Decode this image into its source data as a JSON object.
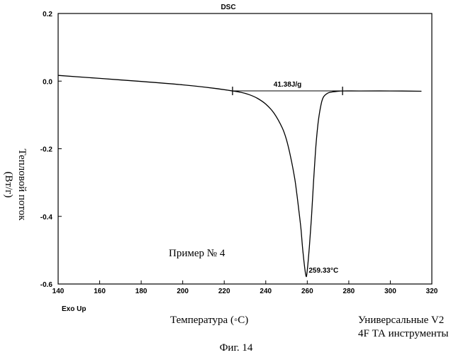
{
  "chart_data": {
    "type": "line",
    "title": "DSC",
    "xlabel": "Температура (◦С)",
    "ylabel_line1": "Тепловой поток",
    "ylabel_line2": "(Вт/г)",
    "xlim": [
      140,
      320
    ],
    "ylim": [
      -0.6,
      0.2
    ],
    "x_ticks": [
      140,
      160,
      180,
      200,
      220,
      240,
      260,
      280,
      300,
      320
    ],
    "y_ticks": [
      0.2,
      0.0,
      -0.2,
      -0.4,
      -0.6
    ],
    "y_tick_labels": [
      "0.2",
      "0.0",
      "-0.2",
      "-0.4",
      "-0.6"
    ],
    "grid": false,
    "series": [
      {
        "x": [
          140,
          160,
          180,
          200,
          215,
          224,
          228,
          232,
          236,
          240,
          244,
          248,
          250,
          252,
          254,
          255,
          256,
          257,
          258,
          259.33,
          260,
          261,
          262,
          263,
          264,
          265,
          266,
          267,
          268,
          270,
          272,
          275,
          277,
          285,
          300,
          315
        ],
        "values": [
          0.017,
          0.008,
          -0.001,
          -0.011,
          -0.021,
          -0.029,
          -0.033,
          -0.04,
          -0.051,
          -0.068,
          -0.095,
          -0.139,
          -0.174,
          -0.225,
          -0.29,
          -0.335,
          -0.385,
          -0.44,
          -0.51,
          -0.575,
          -0.56,
          -0.49,
          -0.405,
          -0.3,
          -0.205,
          -0.135,
          -0.09,
          -0.06,
          -0.045,
          -0.035,
          -0.032,
          -0.03,
          -0.029,
          -0.029,
          -0.029,
          -0.03
        ]
      }
    ],
    "baseline": {
      "x": [
        224,
        277
      ],
      "y": [
        -0.029,
        -0.029
      ]
    },
    "integration_marks_x": [
      224,
      277
    ],
    "annotations": {
      "enthalpy": "41.38J/g",
      "peak": "259.33°C",
      "peak_x": 259.33,
      "peak_y": -0.575,
      "sample": "Пример № 4",
      "exo": "Exo Up",
      "instrument_line1": "Универсальные V2",
      "instrument_line2": "4F ТА инструменты"
    },
    "caption": "Фиг. 14"
  }
}
